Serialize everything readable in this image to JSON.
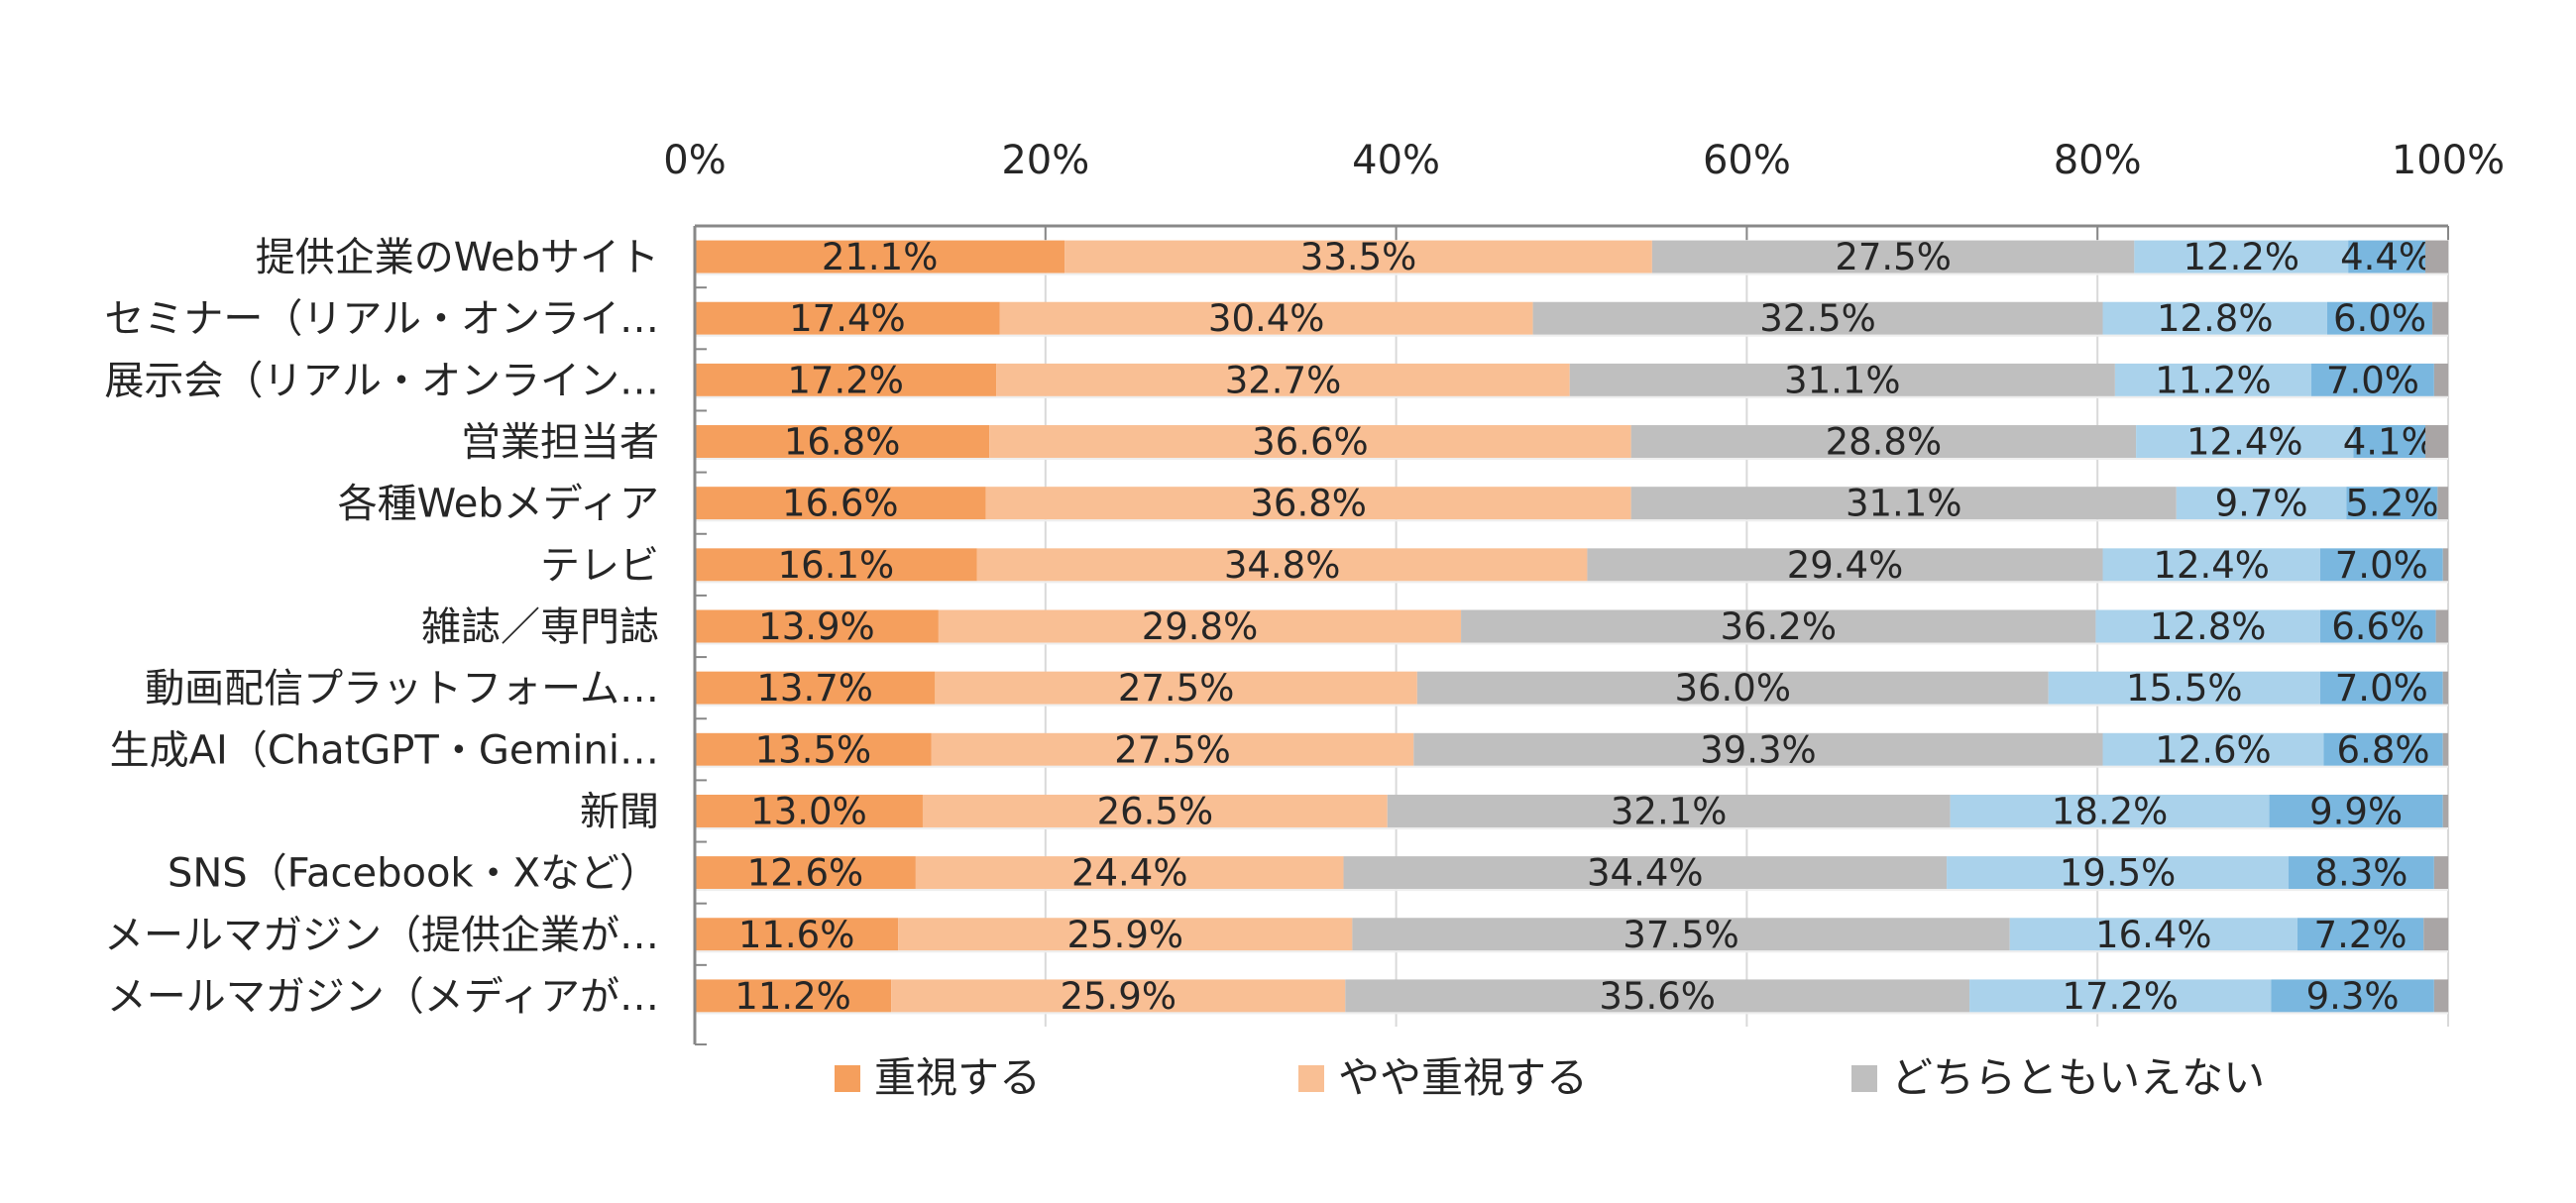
{
  "chart_data": {
    "type": "bar",
    "orientation": "horizontal",
    "stacked": "percent",
    "title": "",
    "xlabel": "",
    "ylabel": "",
    "xlim": [
      0,
      100
    ],
    "x_ticks": [
      "0%",
      "20%",
      "40%",
      "60%",
      "80%",
      "100%"
    ],
    "x_axis_position": "top",
    "grid": true,
    "legend_position": "bottom",
    "categories": [
      "提供企業のWebサイト",
      "セミナー（リアル・オンライ…",
      "展示会（リアル・オンライン…",
      "営業担当者",
      "各種Webメディア",
      "テレビ",
      "雑誌／専門誌",
      "動画配信プラットフォーム…",
      "生成AI（ChatGPT・Gemini…",
      "新聞",
      "SNS（Facebook・Xなど）",
      "メールマガジン（提供企業が…",
      "メールマガジン（メディアが…"
    ],
    "series": [
      {
        "name": "重視する",
        "color": "#F59F5D",
        "show_in_legend": true,
        "values": [
          21.1,
          17.4,
          17.2,
          16.8,
          16.6,
          16.1,
          13.9,
          13.7,
          13.5,
          13.0,
          12.6,
          11.6,
          11.2
        ],
        "labels": [
          "21.1%",
          "17.4%",
          "17.2%",
          "16.8%",
          "16.6%",
          "16.1%",
          "13.9%",
          "13.7%",
          "13.5%",
          "13.0%",
          "12.6%",
          "11.6%",
          "11.2%"
        ]
      },
      {
        "name": "やや重視する",
        "color": "#F9BF94",
        "show_in_legend": true,
        "values": [
          33.5,
          30.4,
          32.7,
          36.6,
          36.8,
          34.8,
          29.8,
          27.5,
          27.5,
          26.5,
          24.4,
          25.9,
          25.9
        ],
        "labels": [
          "33.5%",
          "30.4%",
          "32.7%",
          "36.6%",
          "36.8%",
          "34.8%",
          "29.8%",
          "27.5%",
          "27.5%",
          "26.5%",
          "24.4%",
          "25.9%",
          "25.9%"
        ]
      },
      {
        "name": "どちらともいえない",
        "color": "#BFBFBF",
        "show_in_legend": true,
        "values": [
          27.5,
          32.5,
          31.1,
          28.8,
          31.1,
          29.4,
          36.2,
          36.0,
          39.3,
          32.1,
          34.4,
          37.5,
          35.6
        ],
        "labels": [
          "27.5%",
          "32.5%",
          "31.1%",
          "28.8%",
          "31.1%",
          "29.4%",
          "36.2%",
          "36.0%",
          "39.3%",
          "32.1%",
          "34.4%",
          "37.5%",
          "35.6%"
        ]
      },
      {
        "name": "",
        "color": "#AAD2EB",
        "show_in_legend": false,
        "values": [
          12.2,
          12.8,
          11.2,
          12.4,
          9.7,
          12.4,
          12.8,
          15.5,
          12.6,
          18.2,
          19.5,
          16.4,
          17.2
        ],
        "labels": [
          "12.2%",
          "12.8%",
          "11.2%",
          "12.4%",
          "9.7%",
          "12.4%",
          "12.8%",
          "15.5%",
          "12.6%",
          "18.2%",
          "19.5%",
          "16.4%",
          "17.2%"
        ]
      },
      {
        "name": "",
        "color": "#7AB7DF",
        "show_in_legend": false,
        "values": [
          4.4,
          6.0,
          7.0,
          4.1,
          5.2,
          7.0,
          6.6,
          7.0,
          6.8,
          9.9,
          8.3,
          7.2,
          9.3
        ],
        "labels": [
          "4.4%",
          "6.0%",
          "7.0%",
          "4.1%",
          "5.2%",
          "7.0%",
          "6.6%",
          "7.0%",
          "6.8%",
          "9.9%",
          "8.3%",
          "7.2%",
          "9.3%"
        ]
      },
      {
        "name": "",
        "color": "#A9A5A5",
        "show_in_legend": false,
        "values": [
          1.3,
          0.9,
          0.8,
          1.3,
          0.6,
          0.3,
          0.7,
          0.3,
          0.3,
          0.3,
          0.8,
          1.4,
          0.8
        ],
        "labels": []
      }
    ],
    "legend": [
      {
        "label": "重視する",
        "color": "#F59F5D"
      },
      {
        "label": "やや重視する",
        "color": "#F9BF94"
      },
      {
        "label": "どちらともいえない",
        "color": "#BFBFBF"
      }
    ]
  }
}
